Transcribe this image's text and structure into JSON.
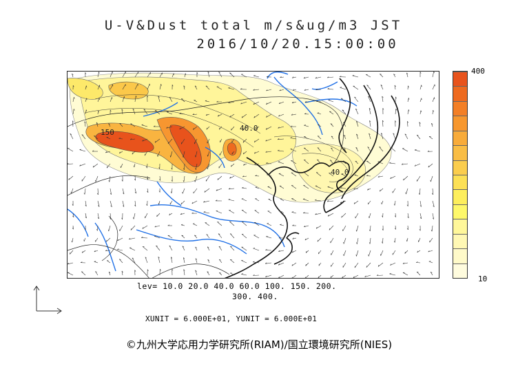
{
  "title": {
    "line1": "U-V&Dust total m/s&ug/m3 JST",
    "line2": "2016/10/20.15:00:00"
  },
  "colorbar": {
    "max_label": "400",
    "min_label": "10",
    "colors": [
      "#e8531c",
      "#ee6a1f",
      "#f37f26",
      "#f7972e",
      "#f8ab3a",
      "#f9bd45",
      "#fbcd4d",
      "#fce055",
      "#fdee5c",
      "#fef86a",
      "#fff79a",
      "#fff8b4",
      "#fffac9",
      "#fffcde"
    ]
  },
  "contour_levels": {
    "line1": "lev= 10.0 20.0 40.0 60.0 100. 150. 200.",
    "line2": "300. 400."
  },
  "contour_labels": [
    "150",
    "40.0",
    "40.0"
  ],
  "units_text": "XUNIT = 6.000E+01, YUNIT = 6.000E+01",
  "copyright": "©九州大学応用力学研究所(RIAM)/国立環境研究所(NIES)",
  "map_colors": {
    "coast": "#111111",
    "river": "#1e6fe6",
    "border": "#222222",
    "vector": "#333333"
  }
}
